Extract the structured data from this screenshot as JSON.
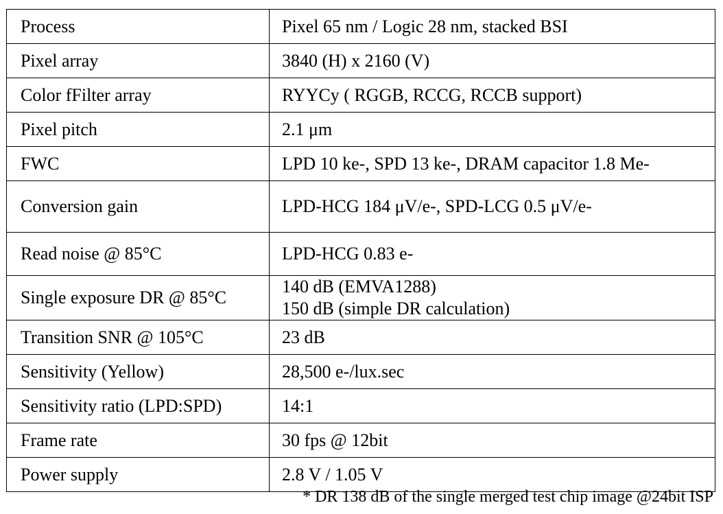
{
  "table": {
    "rows": [
      {
        "label": "Process",
        "value": "Pixel 65 nm / Logic 28 nm, stacked BSI"
      },
      {
        "label": "Pixel array",
        "value": "3840 (H) x 2160 (V)"
      },
      {
        "label": "Color fFilter array",
        "value": "RYYCy ( RGGB, RCCG, RCCB support)"
      },
      {
        "label": "Pixel pitch",
        "value": "2.1 μm"
      },
      {
        "label": "FWC",
        "value": "LPD 10 ke-, SPD 13 ke-, DRAM capacitor 1.8 Me-"
      },
      {
        "label": "Conversion gain",
        "value": "LPD-HCG 184 μV/e-, SPD-LCG 0.5 μV/e-"
      },
      {
        "label": "Read noise @ 85°C",
        "value": "LPD-HCG 0.83 e-"
      },
      {
        "label": "Single exposure DR @ 85°C",
        "value_lines": [
          "140 dB (EMVA1288)",
          "150 dB (simple DR calculation)"
        ]
      },
      {
        "label": "Transition SNR @ 105°C",
        "value": "23 dB"
      },
      {
        "label": "Sensitivity (Yellow)",
        "value": "28,500 e-/lux.sec"
      },
      {
        "label": "Sensitivity ratio (LPD:SPD)",
        "value": "14:1"
      },
      {
        "label": "Frame rate",
        "value": "30 fps @ 12bit"
      },
      {
        "label": "Power supply",
        "value": "2.8 V / 1.05 V"
      }
    ]
  },
  "footnote": "* DR 138 dB of the single merged test chip image @24bit ISP"
}
